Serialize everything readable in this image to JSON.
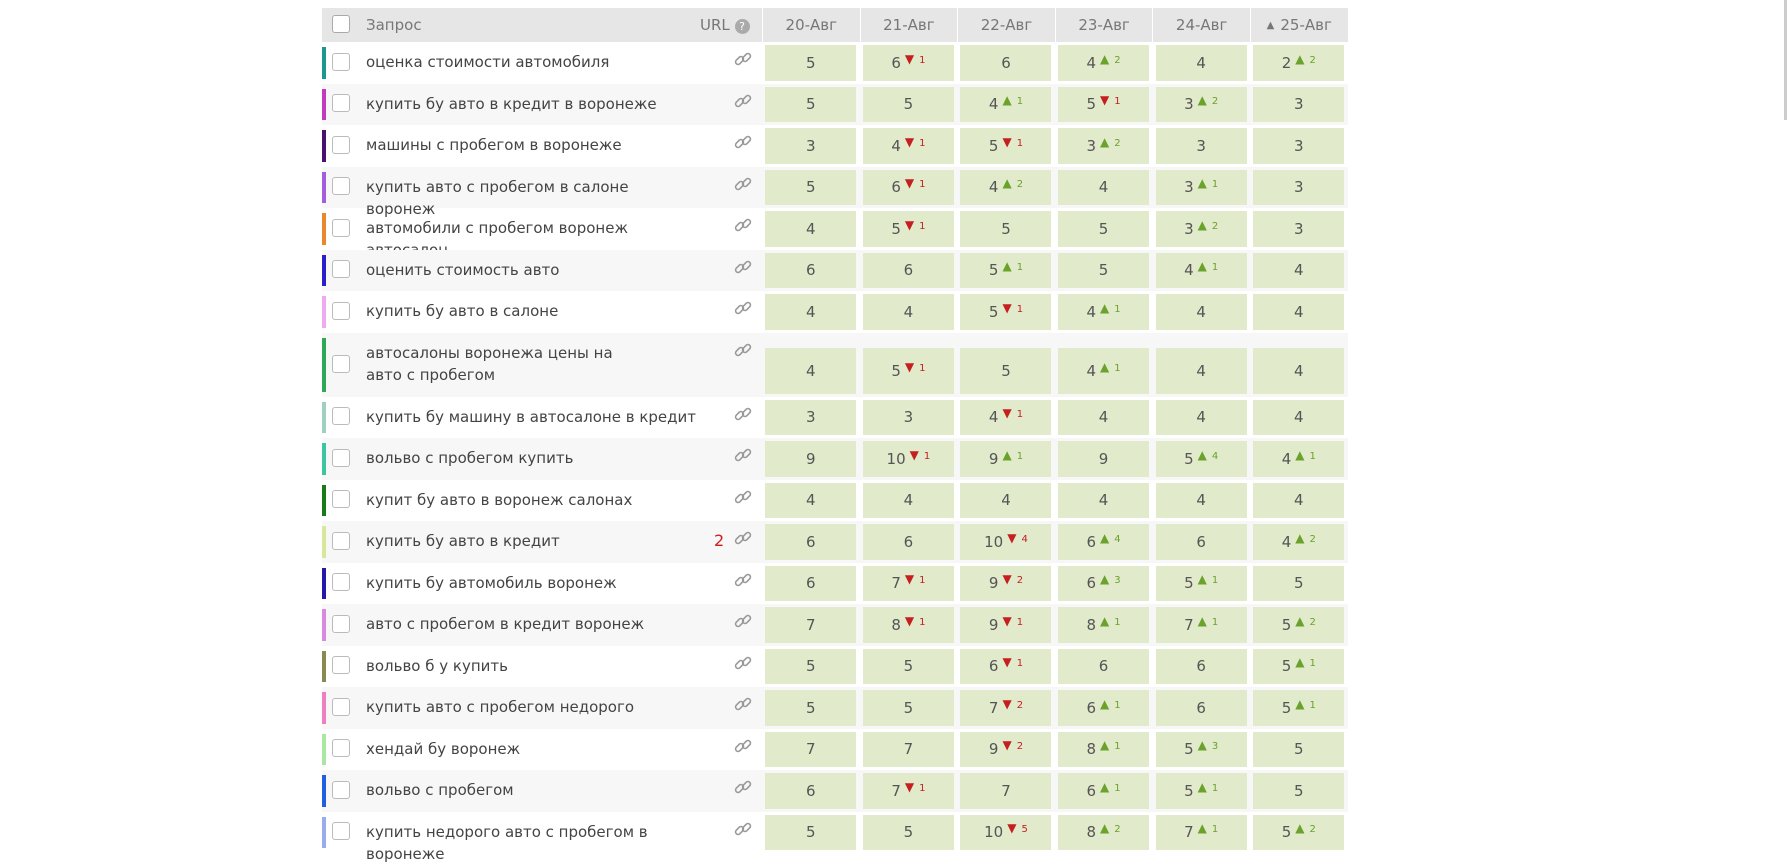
{
  "header": {
    "query": "Запрос",
    "url": "URL",
    "dates": [
      "20-Авг",
      "21-Авг",
      "22-Авг",
      "23-Авг",
      "24-Авг",
      "25-Авг"
    ]
  },
  "rows": [
    {
      "query": "оценка стоимости автомобиля",
      "color": "#1a9a8e",
      "cells": [
        {
          "pos": 5
        },
        {
          "pos": 6,
          "down": 1
        },
        {
          "pos": 6
        },
        {
          "pos": 4,
          "up": 2
        },
        {
          "pos": 4
        },
        {
          "pos": 2,
          "up": 2
        }
      ]
    },
    {
      "query": "купить бу авто в кредит в воронеже",
      "color": "#c23bbf",
      "cells": [
        {
          "pos": 5
        },
        {
          "pos": 5
        },
        {
          "pos": 4,
          "up": 1
        },
        {
          "pos": 5,
          "down": 1
        },
        {
          "pos": 3,
          "up": 2
        },
        {
          "pos": 3
        }
      ]
    },
    {
      "query": "машины с пробегом в воронеже",
      "color": "#4a1170",
      "cells": [
        {
          "pos": 3
        },
        {
          "pos": 4,
          "down": 1
        },
        {
          "pos": 5,
          "down": 1
        },
        {
          "pos": 3,
          "up": 2
        },
        {
          "pos": 3
        },
        {
          "pos": 3
        }
      ]
    },
    {
      "query": "купить авто с пробегом в салоне воронеж",
      "color": "#a35ee0",
      "cells": [
        {
          "pos": 5
        },
        {
          "pos": 6,
          "down": 1
        },
        {
          "pos": 4,
          "up": 2
        },
        {
          "pos": 4
        },
        {
          "pos": 3,
          "up": 1
        },
        {
          "pos": 3
        }
      ]
    },
    {
      "query": "автомобили с пробегом воронеж автосалон",
      "color": "#e8892e",
      "cells": [
        {
          "pos": 4
        },
        {
          "pos": 5,
          "down": 1
        },
        {
          "pos": 5
        },
        {
          "pos": 5
        },
        {
          "pos": 3,
          "up": 2
        },
        {
          "pos": 3
        }
      ]
    },
    {
      "query": "оценить стоимость авто",
      "color": "#2a1fc9",
      "cells": [
        {
          "pos": 6
        },
        {
          "pos": 6
        },
        {
          "pos": 5,
          "up": 1
        },
        {
          "pos": 5
        },
        {
          "pos": 4,
          "up": 1
        },
        {
          "pos": 4
        }
      ]
    },
    {
      "query": "купить бу авто в салоне",
      "color": "#eeaaee",
      "cells": [
        {
          "pos": 4
        },
        {
          "pos": 4
        },
        {
          "pos": 5,
          "down": 1
        },
        {
          "pos": 4,
          "up": 1
        },
        {
          "pos": 4
        },
        {
          "pos": 4
        }
      ]
    },
    {
      "query": "автосалоны воронежа цены на авто с пробегом",
      "color": "#2fa85a",
      "tall": true,
      "cells": [
        {
          "pos": 4
        },
        {
          "pos": 5,
          "down": 1
        },
        {
          "pos": 5
        },
        {
          "pos": 4,
          "up": 1
        },
        {
          "pos": 4
        },
        {
          "pos": 4
        }
      ]
    },
    {
      "query": "купить бу машину в автосалоне в кредит",
      "color": "#9fd0c0",
      "cells": [
        {
          "pos": 3
        },
        {
          "pos": 3
        },
        {
          "pos": 4,
          "down": 1
        },
        {
          "pos": 4
        },
        {
          "pos": 4
        },
        {
          "pos": 4
        }
      ]
    },
    {
      "query": "вольво с пробегом купить",
      "color": "#3ac6a0",
      "cells": [
        {
          "pos": 9
        },
        {
          "pos": 10,
          "down": 1
        },
        {
          "pos": 9,
          "up": 1
        },
        {
          "pos": 9
        },
        {
          "pos": 5,
          "up": 4
        },
        {
          "pos": 4,
          "up": 1
        }
      ]
    },
    {
      "query": "купит бу авто в воронеж салонах",
      "color": "#1a7a1a",
      "cells": [
        {
          "pos": 4
        },
        {
          "pos": 4
        },
        {
          "pos": 4
        },
        {
          "pos": 4
        },
        {
          "pos": 4
        },
        {
          "pos": 4
        }
      ]
    },
    {
      "query": "купить бу авто в кредит",
      "color": "#d8e89a",
      "urls": 2,
      "cells": [
        {
          "pos": 6
        },
        {
          "pos": 6
        },
        {
          "pos": 10,
          "down": 4
        },
        {
          "pos": 6,
          "up": 4
        },
        {
          "pos": 6
        },
        {
          "pos": 4,
          "up": 2
        }
      ]
    },
    {
      "query": "купить бу автомобиль воронеж",
      "color": "#241aa8",
      "cells": [
        {
          "pos": 6
        },
        {
          "pos": 7,
          "down": 1
        },
        {
          "pos": 9,
          "down": 2
        },
        {
          "pos": 6,
          "up": 3
        },
        {
          "pos": 5,
          "up": 1
        },
        {
          "pos": 5
        }
      ]
    },
    {
      "query": "авто с пробегом в кредит воронеж",
      "color": "#d98ae0",
      "cells": [
        {
          "pos": 7
        },
        {
          "pos": 8,
          "down": 1
        },
        {
          "pos": 9,
          "down": 1
        },
        {
          "pos": 8,
          "up": 1
        },
        {
          "pos": 7,
          "up": 1
        },
        {
          "pos": 5,
          "up": 2
        }
      ]
    },
    {
      "query": "вольво б у купить",
      "color": "#8a8a50",
      "cells": [
        {
          "pos": 5
        },
        {
          "pos": 5
        },
        {
          "pos": 6,
          "down": 1
        },
        {
          "pos": 6
        },
        {
          "pos": 6
        },
        {
          "pos": 5,
          "up": 1
        }
      ]
    },
    {
      "query": "купить авто с пробегом недорого",
      "color": "#ee80c0",
      "cells": [
        {
          "pos": 5
        },
        {
          "pos": 5
        },
        {
          "pos": 7,
          "down": 2
        },
        {
          "pos": 6,
          "up": 1
        },
        {
          "pos": 6
        },
        {
          "pos": 5,
          "up": 1
        }
      ]
    },
    {
      "query": "хендай бу воронеж",
      "color": "#a8e8a0",
      "cells": [
        {
          "pos": 7
        },
        {
          "pos": 7
        },
        {
          "pos": 9,
          "down": 2
        },
        {
          "pos": 8,
          "up": 1
        },
        {
          "pos": 5,
          "up": 3
        },
        {
          "pos": 5
        }
      ]
    },
    {
      "query": "вольво с пробегом",
      "color": "#2060e0",
      "cells": [
        {
          "pos": 6
        },
        {
          "pos": 7,
          "down": 1
        },
        {
          "pos": 7
        },
        {
          "pos": 6,
          "up": 1
        },
        {
          "pos": 5,
          "up": 1
        },
        {
          "pos": 5
        }
      ]
    },
    {
      "query": "купить недорого авто с пробегом в воронеже",
      "color": "#99aaee",
      "cells": [
        {
          "pos": 5
        },
        {
          "pos": 5
        },
        {
          "pos": 10,
          "down": 5
        },
        {
          "pos": 8,
          "up": 2
        },
        {
          "pos": 7,
          "up": 1
        },
        {
          "pos": 5,
          "up": 2
        }
      ]
    }
  ]
}
